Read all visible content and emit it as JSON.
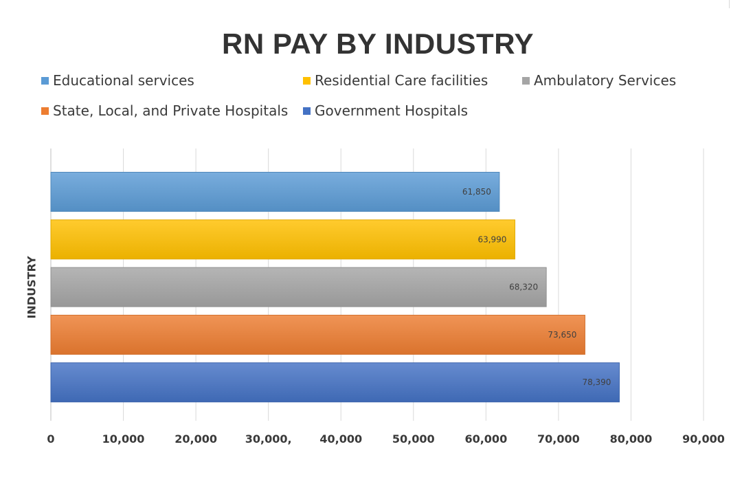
{
  "chart_data": {
    "type": "bar",
    "orientation": "horizontal",
    "title": "RN PAY BY INDUSTRY",
    "ylabel": "INDUSTRY",
    "xlabel": "",
    "xlim": [
      0,
      90000
    ],
    "tick_values": [
      0,
      10000,
      20000,
      30000,
      40000,
      50000,
      60000,
      70000,
      80000,
      90000
    ],
    "tick_labels": [
      "0",
      "10,000",
      "20,000",
      "30,000,",
      "40,000",
      "50,000",
      "60,000",
      "70,000",
      "80,000",
      "90,000"
    ],
    "grid": "vertical",
    "legend_position": "top",
    "series": [
      {
        "name": "Educational services",
        "value": 61850,
        "label": "61,850",
        "color": "#5b9bd5"
      },
      {
        "name": "Residential Care facilities",
        "value": 63990,
        "label": "63,990",
        "color": "#ffc000"
      },
      {
        "name": "Ambulatory Services",
        "value": 68320,
        "label": "68,320",
        "color": "#a5a5a5"
      },
      {
        "name": "State, Local, and Private Hospitals",
        "value": 73650,
        "label": "73,650",
        "color": "#ed7d31"
      },
      {
        "name": "Government Hospitals",
        "value": 78390,
        "label": "78,390",
        "color": "#4472c4"
      }
    ]
  }
}
